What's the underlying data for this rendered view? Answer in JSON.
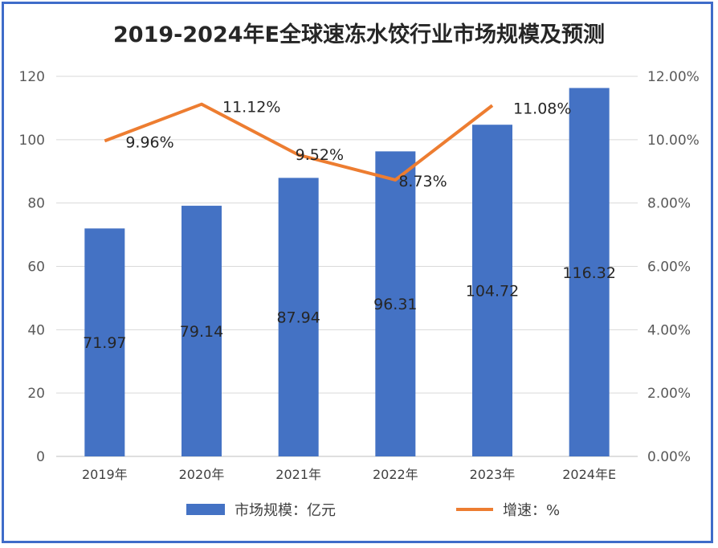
{
  "chart_data": {
    "type": "bar",
    "title": "2019-2024年E全球速冻水饺行业市场规模及预测",
    "categories": [
      "2019年",
      "2020年",
      "2021年",
      "2022年",
      "2023年",
      "2024年E"
    ],
    "series": [
      {
        "name": "市场规模：亿元",
        "type": "bar",
        "axis": "left",
        "color": "#4472c4",
        "values": [
          71.97,
          79.14,
          87.94,
          96.31,
          104.72,
          116.32
        ],
        "labels": [
          "71.97",
          "79.14",
          "87.94",
          "96.31",
          "104.72",
          "116.32"
        ]
      },
      {
        "name": "增速：%",
        "type": "line",
        "axis": "right",
        "color": "#ed7d31",
        "values": [
          9.96,
          11.12,
          9.52,
          8.73,
          11.08,
          null
        ],
        "labels": [
          "9.96%",
          "11.12%",
          "9.52%",
          "8.73%",
          "11.08%",
          ""
        ]
      }
    ],
    "y_left": {
      "min": 0,
      "max": 120,
      "ticks": [
        "0",
        "20",
        "40",
        "60",
        "80",
        "100",
        "120"
      ]
    },
    "y_right": {
      "min": 0,
      "max": 12,
      "ticks": [
        "0.00%",
        "2.00%",
        "4.00%",
        "6.00%",
        "8.00%",
        "10.00%",
        "12.00%"
      ]
    },
    "grid": true,
    "legend_position": "bottom"
  }
}
